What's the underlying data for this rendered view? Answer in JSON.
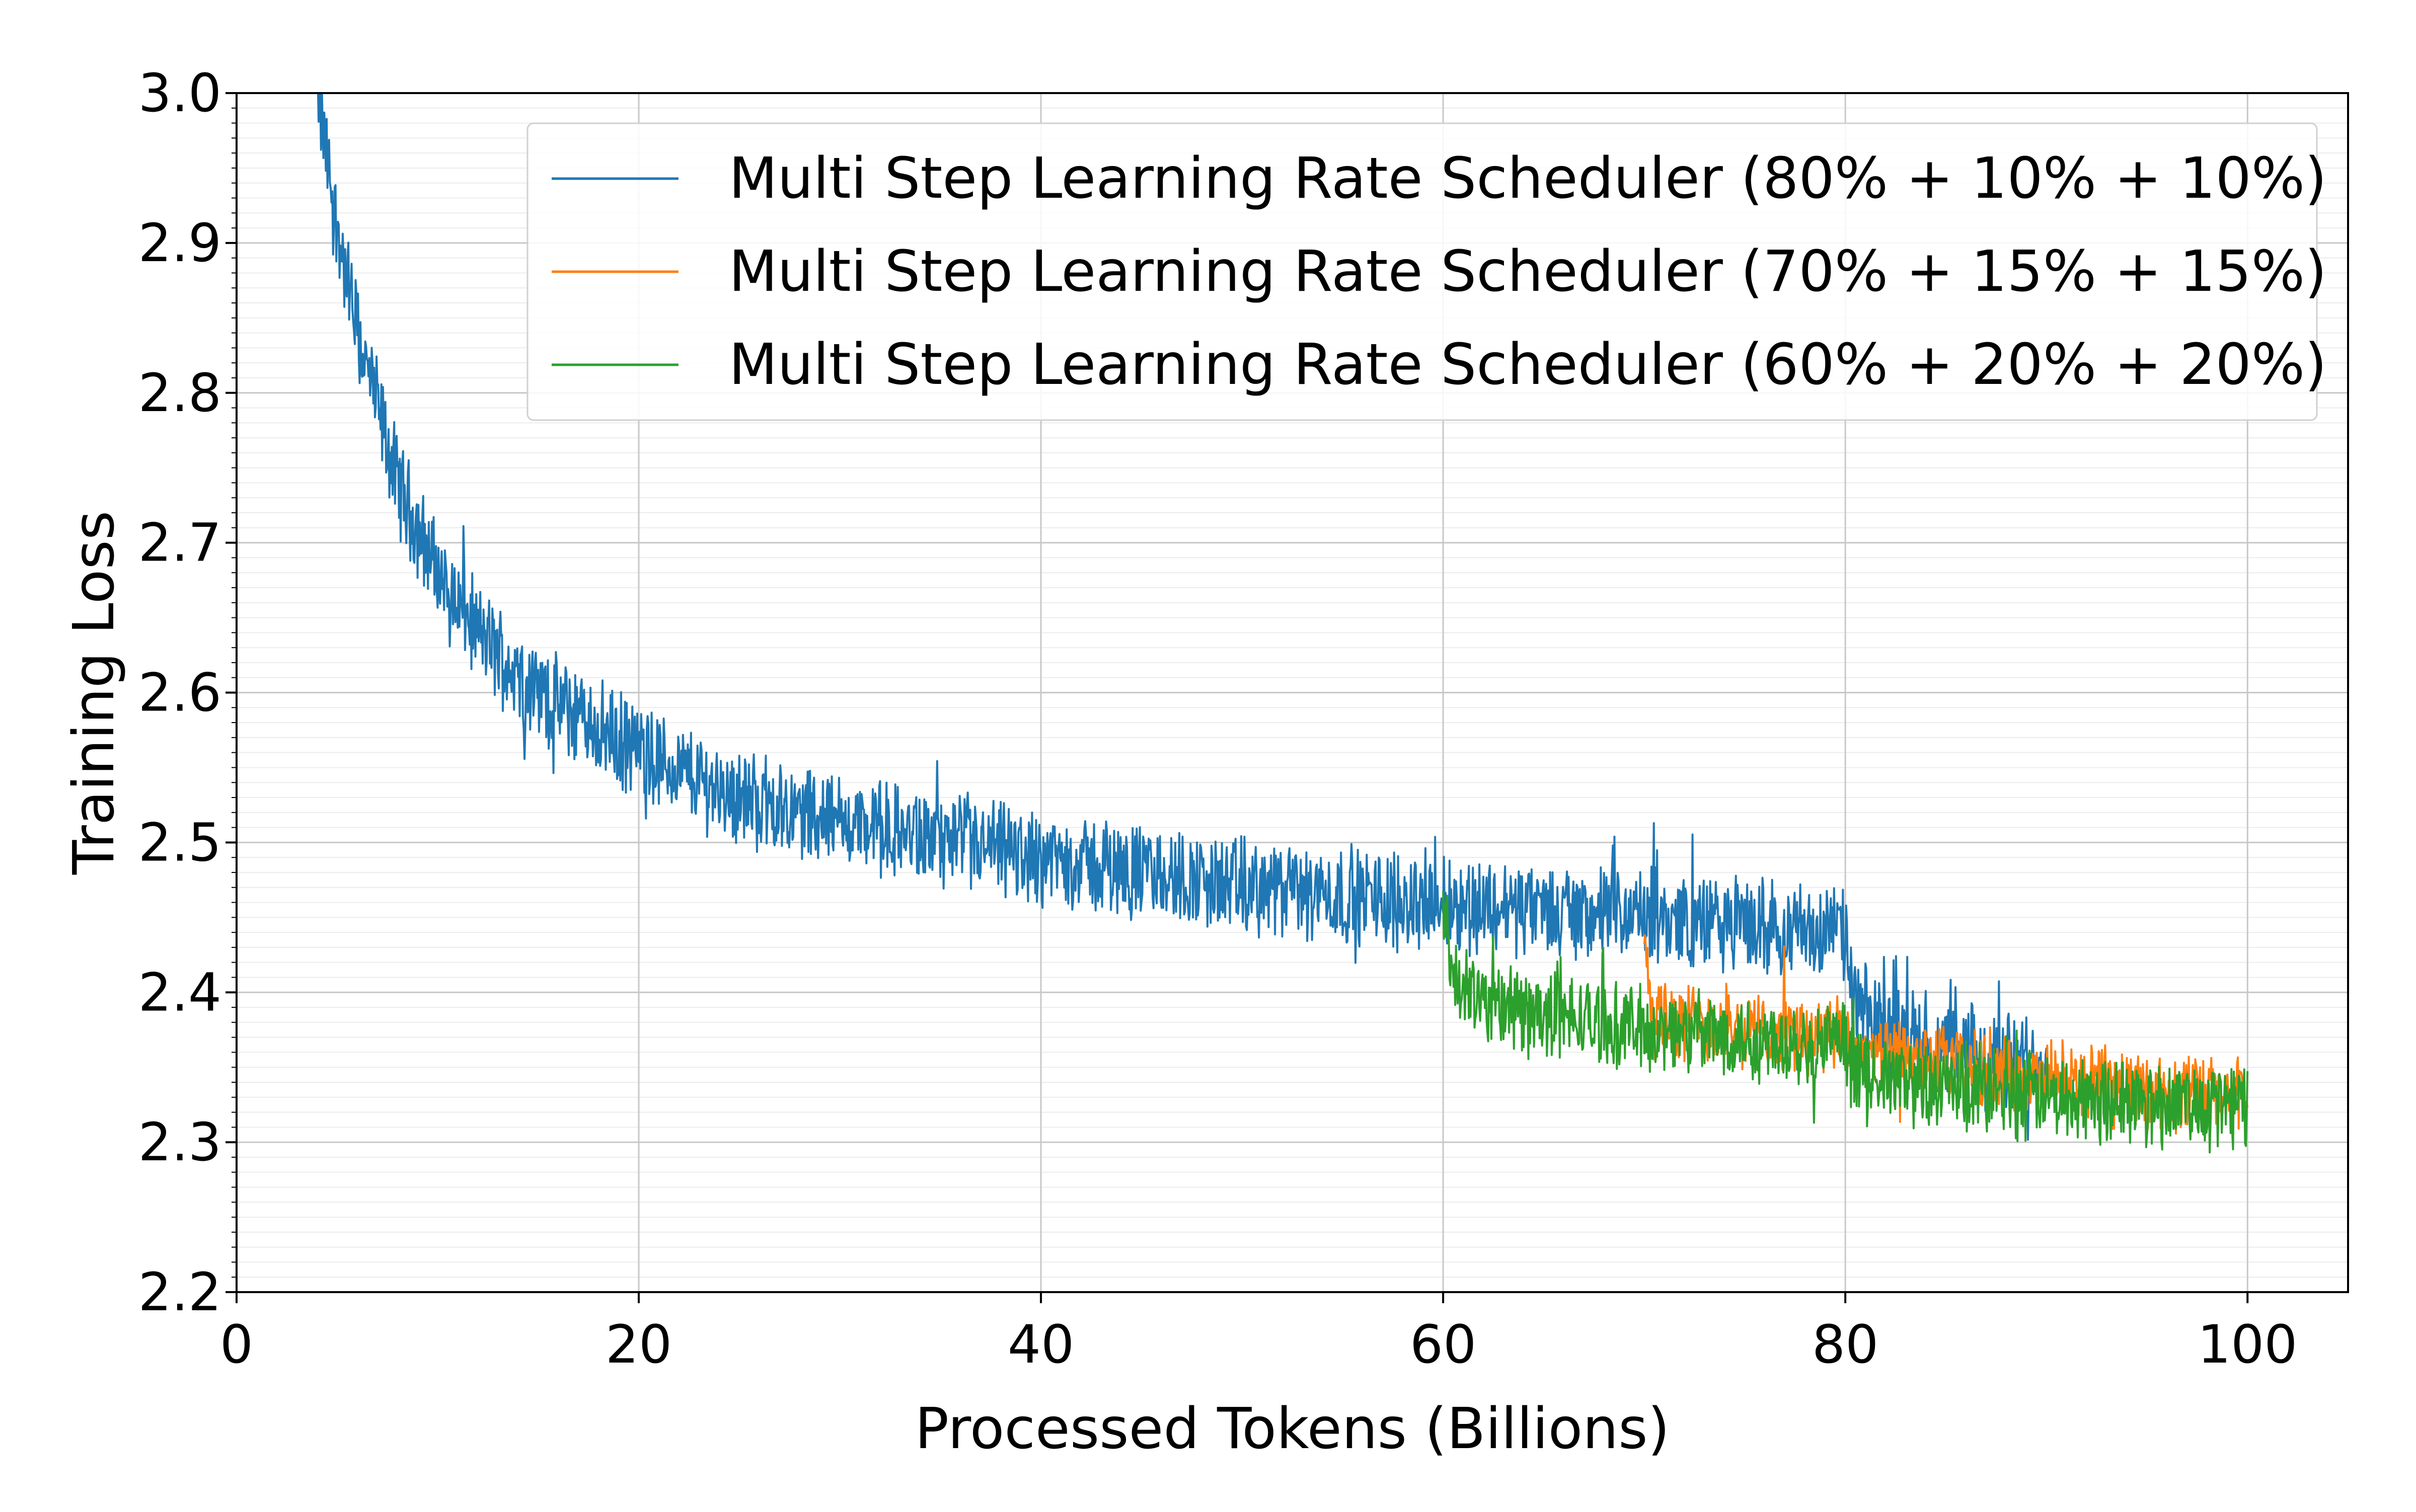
{
  "chart_data": {
    "type": "line",
    "title": "",
    "xlabel": "Processed Tokens (Billions)",
    "ylabel": "Training Loss",
    "xlim": [
      0,
      105
    ],
    "ylim": [
      2.2,
      3.0
    ],
    "xticks": [
      0,
      20,
      40,
      60,
      80,
      100
    ],
    "xtick_labels": [
      "0",
      "20",
      "40",
      "60",
      "80",
      "100"
    ],
    "yticks": [
      2.2,
      2.3,
      2.4,
      2.5,
      2.6,
      2.7,
      2.8,
      2.9,
      3.0
    ],
    "ytick_labels": [
      "2.2",
      "2.3",
      "2.4",
      "2.5",
      "2.6",
      "2.7",
      "2.8",
      "2.9",
      "3.0"
    ],
    "grid": true,
    "minor_grid_y": true,
    "legend_position": "top-right",
    "series": [
      {
        "name": "Multi Step Learning Rate Scheduler (80% + 10% + 10%)",
        "color": "#1f77b4",
        "noise": 0.028,
        "x": [
          4,
          5,
          6,
          7,
          8,
          10,
          12,
          15,
          20,
          25,
          30,
          35,
          40,
          45,
          50,
          55,
          60,
          65,
          70,
          75,
          79.9,
          80.5,
          82,
          85,
          88,
          90
        ],
        "y": [
          3.0,
          2.91,
          2.84,
          2.79,
          2.74,
          2.68,
          2.64,
          2.6,
          2.56,
          2.53,
          2.515,
          2.5,
          2.49,
          2.48,
          2.47,
          2.465,
          2.46,
          2.455,
          2.45,
          2.445,
          2.44,
          2.39,
          2.375,
          2.36,
          2.355,
          2.35
        ]
      },
      {
        "name": "Multi Step Learning Rate Scheduler (70% + 15% + 15%)",
        "color": "#ff7f0e",
        "noise": 0.022,
        "x": [
          70,
          70.5,
          72,
          75,
          79.9,
          80.5,
          83,
          86,
          90,
          95,
          100
        ],
        "y": [
          2.44,
          2.39,
          2.38,
          2.375,
          2.37,
          2.36,
          2.355,
          2.35,
          2.34,
          2.335,
          2.33
        ]
      },
      {
        "name": "Multi Step Learning Rate Scheduler (60% + 20% + 20%)",
        "color": "#2ca02c",
        "noise": 0.025,
        "x": [
          60,
          60.5,
          62,
          65,
          70,
          75,
          79.9,
          80.5,
          83,
          86,
          90,
          95,
          100
        ],
        "y": [
          2.46,
          2.405,
          2.395,
          2.385,
          2.375,
          2.37,
          2.365,
          2.345,
          2.34,
          2.335,
          2.33,
          2.328,
          2.325
        ]
      }
    ]
  }
}
